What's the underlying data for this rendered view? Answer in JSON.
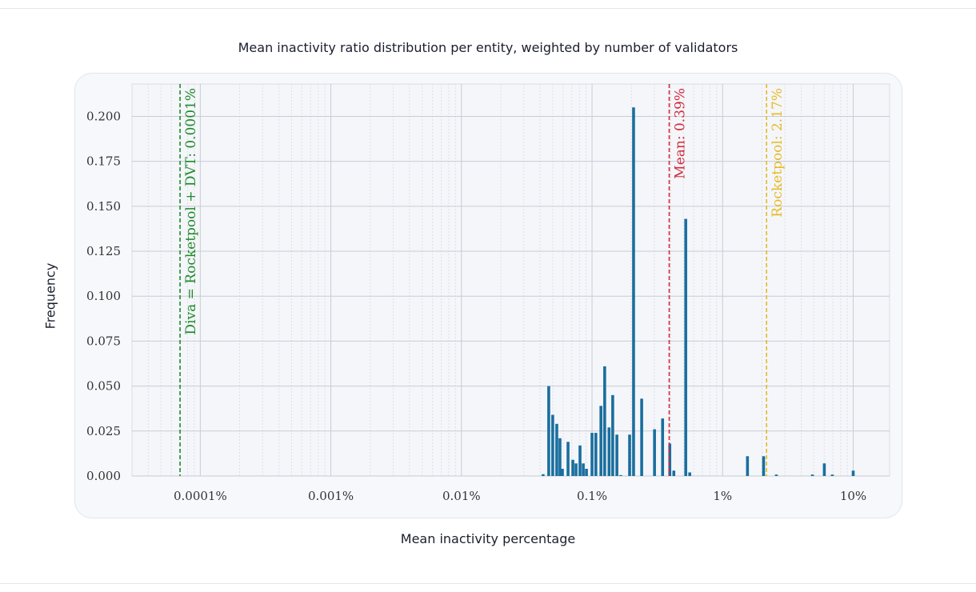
{
  "chart_data": {
    "type": "bar",
    "title": "Mean inactivity ratio distribution per entity, weighted by number of validators",
    "xlabel": "Mean inactivity percentage",
    "ylabel": "Frequency",
    "x_scale": "log",
    "xlim": [
      3e-05,
      19
    ],
    "ylim": [
      0,
      0.218
    ],
    "grid": true,
    "x_ticks": [
      {
        "value": 0.0001,
        "label": "0.0001%"
      },
      {
        "value": 0.001,
        "label": "0.001%"
      },
      {
        "value": 0.01,
        "label": "0.01%"
      },
      {
        "value": 0.1,
        "label": "0.1%"
      },
      {
        "value": 1,
        "label": "1%"
      },
      {
        "value": 10,
        "label": "10%"
      }
    ],
    "y_ticks": [
      {
        "value": 0,
        "label": "0.000"
      },
      {
        "value": 0.025,
        "label": "0.025"
      },
      {
        "value": 0.05,
        "label": "0.050"
      },
      {
        "value": 0.075,
        "label": "0.075"
      },
      {
        "value": 0.1,
        "label": "0.100"
      },
      {
        "value": 0.125,
        "label": "0.125"
      },
      {
        "value": 0.15,
        "label": "0.150"
      },
      {
        "value": 0.175,
        "label": "0.175"
      },
      {
        "value": 0.2,
        "label": "0.200"
      }
    ],
    "bar_color": "#1a6e9e",
    "bars": [
      {
        "x": 0.0422,
        "y": 0.001
      },
      {
        "x": 0.0466,
        "y": 0.05
      },
      {
        "x": 0.05,
        "y": 0.034
      },
      {
        "x": 0.0537,
        "y": 0.029
      },
      {
        "x": 0.0568,
        "y": 0.021
      },
      {
        "x": 0.0593,
        "y": 0.004
      },
      {
        "x": 0.0655,
        "y": 0.019
      },
      {
        "x": 0.0713,
        "y": 0.009
      },
      {
        "x": 0.0754,
        "y": 0.007
      },
      {
        "x": 0.0809,
        "y": 0.017
      },
      {
        "x": 0.0857,
        "y": 0.007
      },
      {
        "x": 0.0906,
        "y": 0.004
      },
      {
        "x": 0.1,
        "y": 0.024
      },
      {
        "x": 0.107,
        "y": 0.024
      },
      {
        "x": 0.117,
        "y": 0.039
      },
      {
        "x": 0.125,
        "y": 0.061
      },
      {
        "x": 0.135,
        "y": 0.027
      },
      {
        "x": 0.144,
        "y": 0.045
      },
      {
        "x": 0.155,
        "y": 0.023
      },
      {
        "x": 0.166,
        "y": 0.0005
      },
      {
        "x": 0.194,
        "y": 0.023
      },
      {
        "x": 0.208,
        "y": 0.205
      },
      {
        "x": 0.24,
        "y": 0.043
      },
      {
        "x": 0.301,
        "y": 0.026
      },
      {
        "x": 0.347,
        "y": 0.032
      },
      {
        "x": 0.394,
        "y": 0.018
      },
      {
        "x": 0.423,
        "y": 0.003
      },
      {
        "x": 0.522,
        "y": 0.143
      },
      {
        "x": 0.56,
        "y": 0.002
      },
      {
        "x": 1.55,
        "y": 0.011
      },
      {
        "x": 2.06,
        "y": 0.011
      },
      {
        "x": 2.58,
        "y": 0.0008
      },
      {
        "x": 4.87,
        "y": 0.0008
      },
      {
        "x": 6.01,
        "y": 0.007
      },
      {
        "x": 6.92,
        "y": 0.0008
      },
      {
        "x": 10.0,
        "y": 0.003
      }
    ],
    "reference_lines": [
      {
        "x": 7e-05,
        "label": "Diva = Rocketpool + DVT: 0.0001%",
        "color": "#1e8a2a"
      },
      {
        "x": 0.39,
        "label": "Mean: 0.39%",
        "color": "#d62839"
      },
      {
        "x": 2.17,
        "label": "Rocketpool: 2.17%",
        "color": "#e8b923"
      }
    ]
  }
}
